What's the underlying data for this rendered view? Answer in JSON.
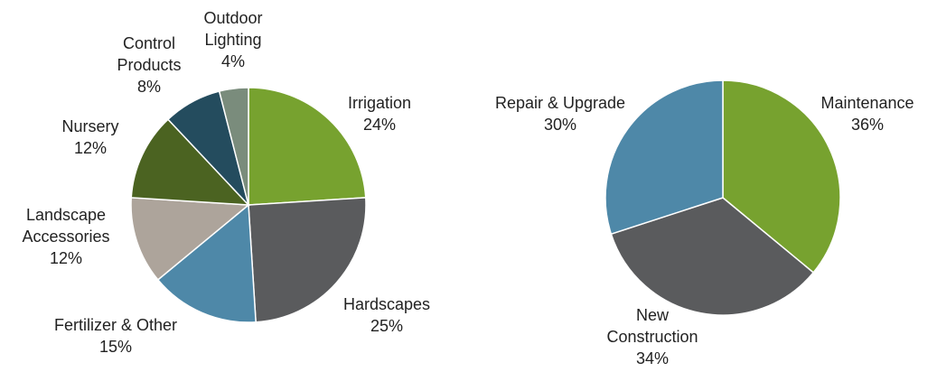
{
  "chart_data": [
    {
      "type": "pie",
      "categories": [
        "Irrigation",
        "Hardscapes",
        "Fertilizer & Other",
        "Landscape Accessories",
        "Nursery",
        "Control Products",
        "Outdoor Lighting"
      ],
      "values": [
        24,
        25,
        15,
        12,
        12,
        8,
        4
      ],
      "value_labels": [
        "24%",
        "25%",
        "15%",
        "12%",
        "12%",
        "8%",
        "4%"
      ],
      "colors": [
        "#77a22f",
        "#5a5b5d",
        "#4e88a8",
        "#ada49b",
        "#4b6321",
        "#244c5e",
        "#7a8c7c"
      ]
    },
    {
      "type": "pie",
      "categories": [
        "Maintenance",
        "New Construction",
        "Repair & Upgrade"
      ],
      "values": [
        36,
        34,
        30
      ],
      "value_labels": [
        "36%",
        "34%",
        "30%"
      ],
      "colors": [
        "#77a22f",
        "#5a5b5d",
        "#4e88a8"
      ]
    }
  ]
}
